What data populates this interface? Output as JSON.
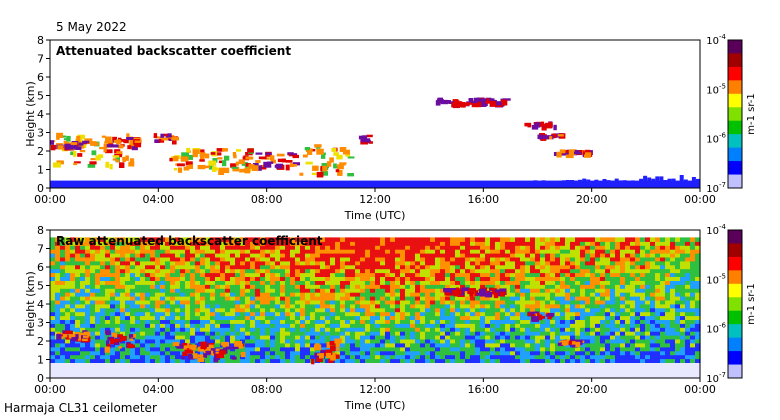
{
  "header": {
    "date": "5 May 2022"
  },
  "footer": {
    "instrument": "Harmaja CL31 ceilometer"
  },
  "colors": {
    "ground_blue": "#2020ff",
    "purple": "#6a0da0",
    "red": "#e00000",
    "orange": "#ff8c00",
    "yellow": "#f0e000",
    "green": "#30c040",
    "white": "#ffffff"
  },
  "chart_data": [
    {
      "type": "heatmap",
      "title": "Attenuated backscatter coefficient",
      "xlabel": "Time (UTC)",
      "ylabel": "Height (km)",
      "xticks": [
        "00:00",
        "04:00",
        "08:00",
        "12:00",
        "16:00",
        "20:00",
        "00:00"
      ],
      "yticks": [
        "0",
        "1",
        "2",
        "3",
        "4",
        "5",
        "6",
        "7",
        "8"
      ],
      "xlim_hours": [
        0,
        24
      ],
      "ylim": [
        0,
        8
      ],
      "colorbar": {
        "scale": "log",
        "ticks": [
          "10-4",
          "10-5",
          "10-6",
          "10-7"
        ],
        "unit": "m-1 sr-1"
      },
      "layers": [
        {
          "t0": 0.1,
          "t1": 3.0,
          "h0": 1.2,
          "h1": 3.0,
          "level": "mixed"
        },
        {
          "t0": 0.0,
          "t1": 1.2,
          "h0": 2.2,
          "h1": 2.6,
          "level": "red"
        },
        {
          "t0": 2.0,
          "t1": 3.2,
          "h0": 2.3,
          "h1": 2.8,
          "level": "red"
        },
        {
          "t0": 3.8,
          "t1": 4.6,
          "h0": 2.6,
          "h1": 3.0,
          "level": "red"
        },
        {
          "t0": 4.4,
          "t1": 7.4,
          "h0": 1.0,
          "h1": 2.2,
          "level": "mixed"
        },
        {
          "t0": 7.2,
          "t1": 9.0,
          "h0": 1.2,
          "h1": 2.0,
          "level": "red"
        },
        {
          "t0": 9.2,
          "t1": 11.0,
          "h0": 0.8,
          "h1": 2.4,
          "level": "mixed"
        },
        {
          "t0": 11.4,
          "t1": 11.8,
          "h0": 2.5,
          "h1": 2.9,
          "level": "red"
        },
        {
          "t0": 14.2,
          "t1": 16.8,
          "h0": 4.6,
          "h1": 4.9,
          "level": "purple"
        },
        {
          "t0": 17.5,
          "t1": 18.6,
          "h0": 3.4,
          "h1": 3.6,
          "level": "purple"
        },
        {
          "t0": 18.0,
          "t1": 18.8,
          "h0": 2.8,
          "h1": 3.0,
          "level": "red"
        },
        {
          "t0": 18.6,
          "t1": 19.8,
          "h0": 1.9,
          "h1": 2.1,
          "level": "red"
        }
      ],
      "ground_layer_km": [
        0.0,
        0.4
      ]
    },
    {
      "type": "heatmap",
      "title": "Raw attenuated backscatter coefficient",
      "xlabel": "Time (UTC)",
      "ylabel": "Height (km)",
      "xticks": [
        "00:00",
        "04:00",
        "08:00",
        "12:00",
        "16:00",
        "20:00",
        "00:00"
      ],
      "yticks": [
        "0",
        "1",
        "2",
        "3",
        "4",
        "5",
        "6",
        "7",
        "8"
      ],
      "xlim_hours": [
        0,
        24
      ],
      "ylim": [
        0,
        8
      ],
      "colorbar": {
        "scale": "log",
        "ticks": [
          "10-4",
          "10-5",
          "10-6",
          "10-7"
        ],
        "unit": "m-1 sr-1"
      },
      "layers": [
        {
          "t0": 0.2,
          "t1": 1.4,
          "h0": 2.2,
          "h1": 2.6,
          "level": "red"
        },
        {
          "t0": 2.0,
          "t1": 3.0,
          "h0": 1.6,
          "h1": 2.6,
          "level": "red"
        },
        {
          "t0": 4.5,
          "t1": 7.2,
          "h0": 1.1,
          "h1": 2.0,
          "level": "red"
        },
        {
          "t0": 9.6,
          "t1": 10.6,
          "h0": 1.0,
          "h1": 2.2,
          "level": "red"
        },
        {
          "t0": 14.4,
          "t1": 16.6,
          "h0": 4.6,
          "h1": 4.9,
          "level": "purple"
        },
        {
          "t0": 17.6,
          "t1": 18.4,
          "h0": 3.3,
          "h1": 3.6,
          "level": "purple"
        },
        {
          "t0": 18.7,
          "t1": 19.6,
          "h0": 1.9,
          "h1": 2.1,
          "level": "red"
        }
      ],
      "noise_background": true
    }
  ]
}
